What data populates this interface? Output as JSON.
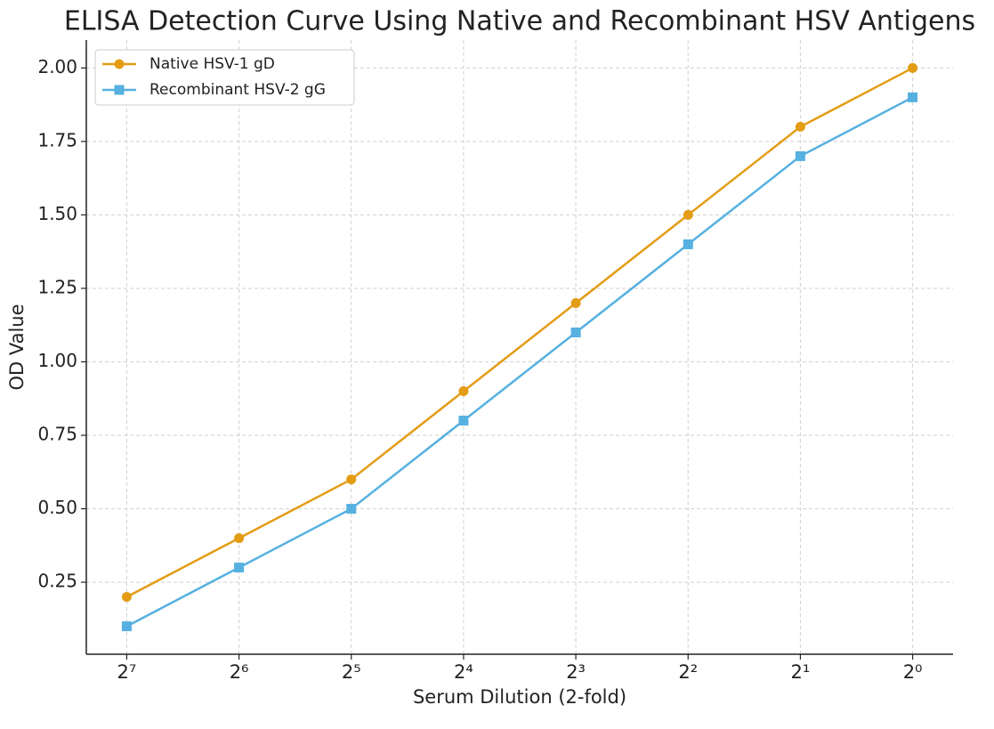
{
  "chart_data": {
    "type": "line",
    "title": "ELISA Detection Curve Using Native and Recombinant HSV Antigens",
    "x_label": "Serum Dilution (2-fold)",
    "y_label": "OD Value",
    "categories": [
      "2⁷",
      "2⁶",
      "2⁵",
      "2⁴",
      "2³",
      "2²",
      "2¹",
      "2⁰"
    ],
    "series": [
      {
        "name": "Native HSV-1 gD",
        "color": "#e39c14",
        "marker": "circle",
        "values": [
          0.2,
          0.4,
          0.6,
          0.9,
          1.2,
          1.5,
          1.8,
          2.0
        ]
      },
      {
        "name": "Recombinant HSV-2 gG",
        "color": "#56b0e0",
        "marker": "square",
        "values": [
          0.1,
          0.3,
          0.5,
          0.8,
          1.1,
          1.4,
          1.7,
          1.9
        ]
      }
    ],
    "ylim": [
      0.005,
      2.095
    ],
    "yticks": [
      0.25,
      {
        "value": 0.5,
        "label": "0.50"
      },
      0.75,
      {
        "value": 1,
        "label": "1.00"
      },
      1.25,
      {
        "value": 1.5,
        "label": "1.50"
      },
      1.75,
      {
        "value": 2,
        "label": "2.00"
      }
    ],
    "grid": true,
    "legend": "upper left"
  }
}
